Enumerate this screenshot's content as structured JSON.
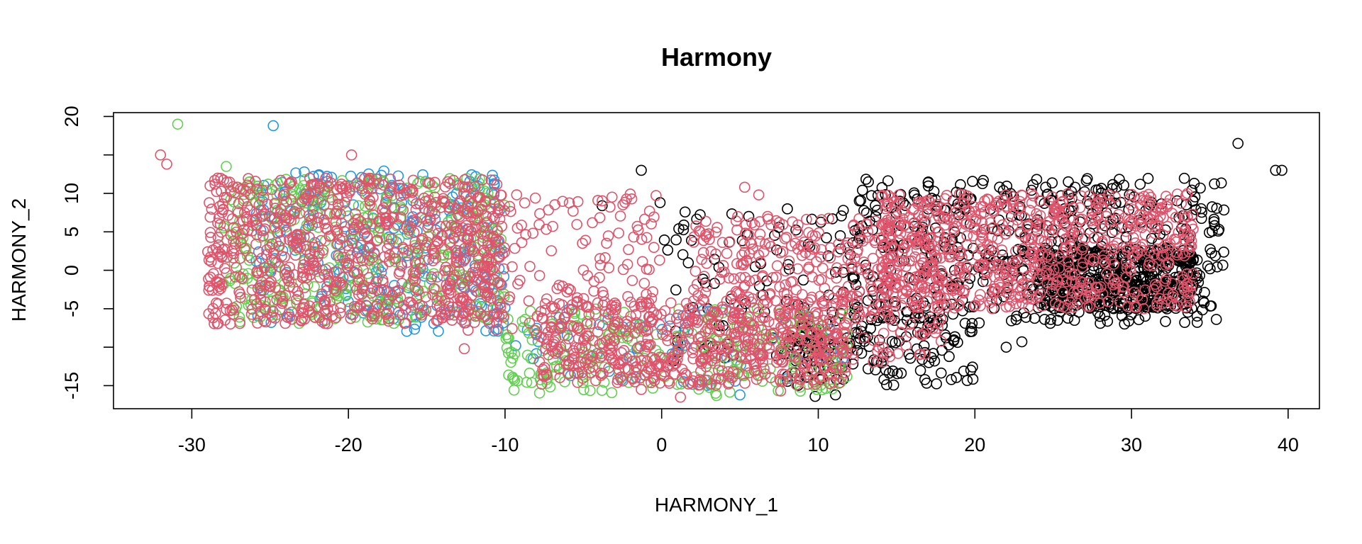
{
  "chart_data": {
    "type": "scatter",
    "title": "Harmony",
    "xlabel": "HARMONY_1",
    "ylabel": "HARMONY_2",
    "xlim": [
      -35,
      42
    ],
    "ylim": [
      -18,
      20.5
    ],
    "x_ticks": [
      -30,
      -20,
      -10,
      0,
      10,
      20,
      30,
      40
    ],
    "y_ticks": [
      -15,
      -10,
      -5,
      0,
      5,
      10,
      15,
      20
    ],
    "y_tick_labels": [
      "-15",
      "",
      "-5",
      "0",
      "5",
      "10",
      "",
      "20"
    ],
    "grid": false,
    "legend": "none",
    "marker": "open-circle",
    "series": [
      {
        "color": "#000000",
        "clusters": [
          {
            "x_range": [
              12,
              36
            ],
            "y_range": [
              -7,
              12
            ],
            "count": 520
          },
          {
            "x_range": [
              24,
              34
            ],
            "y_range": [
              -5,
              3
            ],
            "count": 420
          },
          {
            "x_range": [
              8,
              20
            ],
            "y_range": [
              -15,
              -6
            ],
            "count": 140
          },
          {
            "x_range": [
              0,
              12
            ],
            "y_range": [
              -12,
              8
            ],
            "count": 90
          }
        ],
        "points": [
          {
            "x": -1.3,
            "y": 13
          },
          {
            "x": -0.1,
            "y": 8.8
          },
          {
            "x": 13.2,
            "y": 11.5
          },
          {
            "x": -3.8,
            "y": 8.4
          },
          {
            "x": 36.8,
            "y": 16.5
          },
          {
            "x": 39.2,
            "y": 13
          },
          {
            "x": 39.6,
            "y": 13
          },
          {
            "x": 22,
            "y": -10
          },
          {
            "x": 23,
            "y": -9.3
          },
          {
            "x": 14.2,
            "y": -14.2
          },
          {
            "x": 9.8,
            "y": -16.4
          },
          {
            "x": 11.1,
            "y": -16.2
          }
        ]
      },
      {
        "color": "#2297E6",
        "clusters": [
          {
            "x_range": [
              -26,
              -10
            ],
            "y_range": [
              -8,
              13
            ],
            "count": 260
          },
          {
            "x_range": [
              -10,
              12
            ],
            "y_range": [
              -15,
              -5
            ],
            "count": 60
          }
        ],
        "points": [
          {
            "x": -24.8,
            "y": 18.8
          },
          {
            "x": -8.2,
            "y": -11.5
          },
          {
            "x": 5,
            "y": -16.2
          },
          {
            "x": -16,
            "y": -5.2
          }
        ]
      },
      {
        "color": "#61D04F",
        "clusters": [
          {
            "x_range": [
              -28,
              -10
            ],
            "y_range": [
              -7,
              12
            ],
            "count": 380
          },
          {
            "x_range": [
              -10,
              12
            ],
            "y_range": [
              -16,
              -5
            ],
            "count": 240
          }
        ],
        "points": [
          {
            "x": -30.9,
            "y": 19
          },
          {
            "x": -27.8,
            "y": 13.5
          },
          {
            "x": 3.5,
            "y": -16.3
          },
          {
            "x": 11.5,
            "y": -10.5
          }
        ]
      },
      {
        "color": "#DF536B",
        "clusters": [
          {
            "x_range": [
              -29,
              -10
            ],
            "y_range": [
              -7,
              12
            ],
            "count": 800
          },
          {
            "x_range": [
              -14,
              0
            ],
            "y_range": [
              -8,
              10
            ],
            "count": 180
          },
          {
            "x_range": [
              -8,
              12
            ],
            "y_range": [
              -15,
              -4
            ],
            "count": 500
          },
          {
            "x_range": [
              2,
              18
            ],
            "y_range": [
              -12,
              7
            ],
            "count": 430
          },
          {
            "x_range": [
              14,
              34
            ],
            "y_range": [
              -5,
              10
            ],
            "count": 700
          }
        ],
        "points": [
          {
            "x": -32,
            "y": 15
          },
          {
            "x": -31.6,
            "y": 13.8
          },
          {
            "x": -19.8,
            "y": 15
          },
          {
            "x": 5.3,
            "y": 10.8
          },
          {
            "x": 6.2,
            "y": 9.8
          },
          {
            "x": -12.6,
            "y": -10.2
          },
          {
            "x": 1.2,
            "y": -16.5
          },
          {
            "x": -1.3,
            "y": -15.5
          },
          {
            "x": 7.6,
            "y": -15.7
          }
        ]
      }
    ]
  }
}
